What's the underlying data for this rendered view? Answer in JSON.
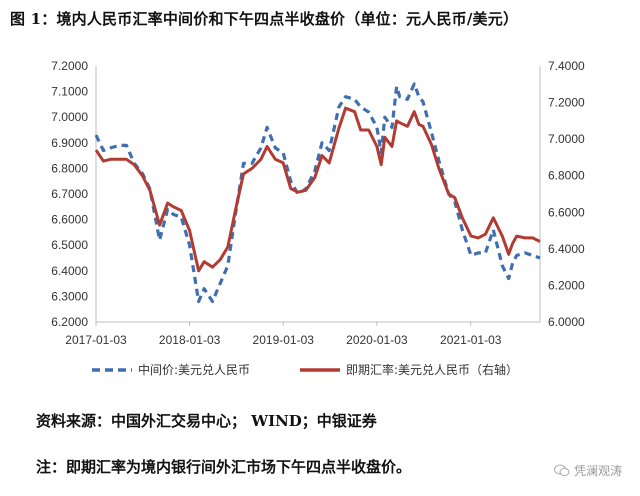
{
  "title": "图 1：境内人民币汇率中间价和下午四点半收盘价（单位：元人民币/美元）",
  "source": "资料来源：中国外汇交易中心； WIND；中银证券",
  "note": "注：即期汇率为境内银行间外汇市场下午四点半收盘价。",
  "watermark": "凭澜观涛",
  "colors": {
    "mid": "#3f6fb0",
    "spot": "#b23b32",
    "axis": "#bfbfbf"
  },
  "chart_data": {
    "type": "line",
    "title": "",
    "left_axis": {
      "ylim": [
        6.2,
        7.2
      ],
      "ticks": [
        "6.2000",
        "6.3000",
        "6.4000",
        "6.5000",
        "6.6000",
        "6.7000",
        "6.8000",
        "6.9000",
        "7.0000",
        "7.1000",
        "7.2000"
      ]
    },
    "right_axis": {
      "ylim": [
        6.0,
        7.4
      ],
      "ticks": [
        "6.0000",
        "6.2000",
        "6.4000",
        "6.6000",
        "6.8000",
        "7.0000",
        "7.2000",
        "7.4000"
      ]
    },
    "x_ticks": [
      "2017-01-03",
      "2018-01-03",
      "2019-01-03",
      "2020-01-03",
      "2021-01-03"
    ],
    "x_range": [
      "2017-01-03",
      "2021-09-30"
    ],
    "legend_position": "bottom",
    "series": [
      {
        "name": "中间价:美元兑人民币",
        "axis": "left",
        "style": "dashed",
        "points": [
          [
            "2017-01-03",
            6.93
          ],
          [
            "2017-02-01",
            6.87
          ],
          [
            "2017-03-01",
            6.88
          ],
          [
            "2017-04-03",
            6.89
          ],
          [
            "2017-05-02",
            6.89
          ],
          [
            "2017-06-01",
            6.82
          ],
          [
            "2017-07-03",
            6.78
          ],
          [
            "2017-08-01",
            6.72
          ],
          [
            "2017-09-08",
            6.52
          ],
          [
            "2017-10-09",
            6.64
          ],
          [
            "2017-11-01",
            6.62
          ],
          [
            "2017-12-01",
            6.61
          ],
          [
            "2018-01-03",
            6.5
          ],
          [
            "2018-02-07",
            6.28
          ],
          [
            "2018-03-01",
            6.33
          ],
          [
            "2018-04-02",
            6.28
          ],
          [
            "2018-05-02",
            6.35
          ],
          [
            "2018-06-01",
            6.42
          ],
          [
            "2018-07-02",
            6.63
          ],
          [
            "2018-08-01",
            6.82
          ],
          [
            "2018-09-03",
            6.82
          ],
          [
            "2018-10-08",
            6.88
          ],
          [
            "2018-11-01",
            6.96
          ],
          [
            "2018-12-03",
            6.88
          ],
          [
            "2019-01-03",
            6.86
          ],
          [
            "2019-02-01",
            6.75
          ],
          [
            "2019-03-01",
            6.7
          ],
          [
            "2019-04-01",
            6.72
          ],
          [
            "2019-05-06",
            6.79
          ],
          [
            "2019-06-03",
            6.9
          ],
          [
            "2019-07-01",
            6.87
          ],
          [
            "2019-08-08",
            7.04
          ],
          [
            "2019-09-03",
            7.08
          ],
          [
            "2019-10-08",
            7.07
          ],
          [
            "2019-11-01",
            7.04
          ],
          [
            "2019-12-02",
            7.02
          ],
          [
            "2020-01-03",
            6.96
          ],
          [
            "2020-01-20",
            6.86
          ],
          [
            "2020-02-03",
            7.0
          ],
          [
            "2020-03-02",
            6.96
          ],
          [
            "2020-03-20",
            7.12
          ],
          [
            "2020-04-01",
            7.08
          ],
          [
            "2020-05-01",
            7.07
          ],
          [
            "2020-05-28",
            7.13
          ],
          [
            "2020-06-15",
            7.08
          ],
          [
            "2020-07-01",
            7.06
          ],
          [
            "2020-08-03",
            6.94
          ],
          [
            "2020-09-01",
            6.83
          ],
          [
            "2020-10-09",
            6.7
          ],
          [
            "2020-11-02",
            6.67
          ],
          [
            "2020-12-01",
            6.56
          ],
          [
            "2021-01-04",
            6.46
          ],
          [
            "2021-02-01",
            6.47
          ],
          [
            "2021-03-01",
            6.47
          ],
          [
            "2021-04-01",
            6.56
          ],
          [
            "2021-05-06",
            6.42
          ],
          [
            "2021-05-31",
            6.37
          ],
          [
            "2021-06-15",
            6.43
          ],
          [
            "2021-07-01",
            6.46
          ],
          [
            "2021-08-02",
            6.47
          ],
          [
            "2021-09-01",
            6.46
          ],
          [
            "2021-09-30",
            6.45
          ]
        ]
      },
      {
        "name": "即期汇率:美元兑人民币（右轴）",
        "axis": "right",
        "style": "solid",
        "points": [
          [
            "2017-01-03",
            6.94
          ],
          [
            "2017-02-01",
            6.88
          ],
          [
            "2017-03-01",
            6.89
          ],
          [
            "2017-04-03",
            6.89
          ],
          [
            "2017-05-02",
            6.89
          ],
          [
            "2017-06-01",
            6.86
          ],
          [
            "2017-07-03",
            6.8
          ],
          [
            "2017-08-01",
            6.72
          ],
          [
            "2017-09-08",
            6.53
          ],
          [
            "2017-10-09",
            6.65
          ],
          [
            "2017-11-01",
            6.63
          ],
          [
            "2017-12-01",
            6.61
          ],
          [
            "2018-01-03",
            6.5
          ],
          [
            "2018-02-07",
            6.28
          ],
          [
            "2018-03-01",
            6.33
          ],
          [
            "2018-04-02",
            6.3
          ],
          [
            "2018-05-02",
            6.34
          ],
          [
            "2018-06-01",
            6.41
          ],
          [
            "2018-07-02",
            6.62
          ],
          [
            "2018-08-01",
            6.81
          ],
          [
            "2018-09-03",
            6.84
          ],
          [
            "2018-10-08",
            6.89
          ],
          [
            "2018-11-01",
            6.96
          ],
          [
            "2018-12-03",
            6.89
          ],
          [
            "2019-01-03",
            6.87
          ],
          [
            "2019-02-01",
            6.73
          ],
          [
            "2019-03-01",
            6.71
          ],
          [
            "2019-04-01",
            6.72
          ],
          [
            "2019-05-06",
            6.79
          ],
          [
            "2019-06-03",
            6.91
          ],
          [
            "2019-07-01",
            6.87
          ],
          [
            "2019-08-08",
            7.06
          ],
          [
            "2019-09-03",
            7.17
          ],
          [
            "2019-10-08",
            7.15
          ],
          [
            "2019-11-01",
            7.05
          ],
          [
            "2019-12-02",
            7.05
          ],
          [
            "2020-01-03",
            6.96
          ],
          [
            "2020-01-20",
            6.86
          ],
          [
            "2020-02-03",
            7.01
          ],
          [
            "2020-03-02",
            6.96
          ],
          [
            "2020-03-20",
            7.1
          ],
          [
            "2020-04-01",
            7.09
          ],
          [
            "2020-05-01",
            7.07
          ],
          [
            "2020-05-28",
            7.15
          ],
          [
            "2020-06-15",
            7.08
          ],
          [
            "2020-07-01",
            7.07
          ],
          [
            "2020-08-03",
            6.97
          ],
          [
            "2020-09-01",
            6.84
          ],
          [
            "2020-10-09",
            6.7
          ],
          [
            "2020-11-02",
            6.68
          ],
          [
            "2020-12-01",
            6.57
          ],
          [
            "2021-01-04",
            6.47
          ],
          [
            "2021-02-01",
            6.46
          ],
          [
            "2021-03-01",
            6.48
          ],
          [
            "2021-04-01",
            6.57
          ],
          [
            "2021-05-06",
            6.47
          ],
          [
            "2021-05-31",
            6.37
          ],
          [
            "2021-06-15",
            6.43
          ],
          [
            "2021-07-01",
            6.47
          ],
          [
            "2021-08-02",
            6.46
          ],
          [
            "2021-09-01",
            6.46
          ],
          [
            "2021-09-30",
            6.44
          ]
        ]
      }
    ]
  }
}
